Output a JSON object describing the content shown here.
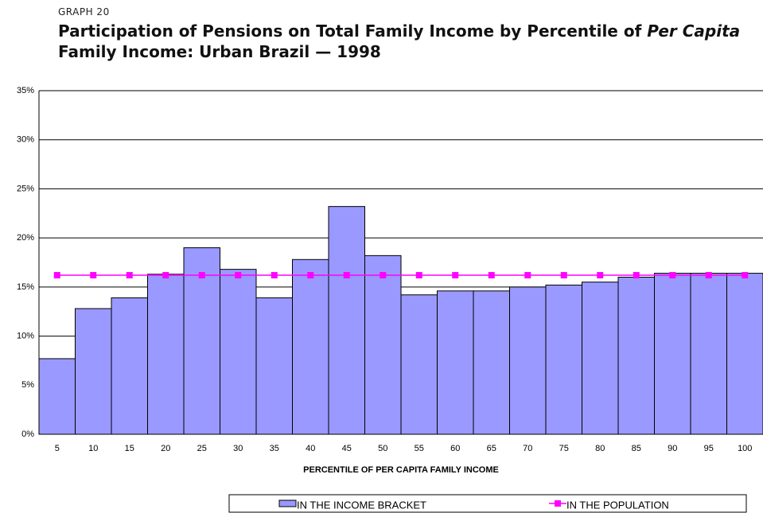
{
  "chart_data": {
    "type": "bar",
    "kicker": "GRAPH 20",
    "title": [
      "Participation of Pensions on Total Family Income by Percentile of ",
      "Per Capita",
      "Family Income: Urban Brazil — 1998"
    ],
    "x_label": "PERCENTILE OF PER CAPITA FAMILY INCOME",
    "categories": [
      "5",
      "10",
      "15",
      "20",
      "25",
      "30",
      "35",
      "40",
      "45",
      "50",
      "55",
      "60",
      "65",
      "70",
      "75",
      "80",
      "85",
      "90",
      "95",
      "100"
    ],
    "series": [
      {
        "name": "IN THE INCOME BRACKET",
        "type": "bar",
        "color": "#9999ff",
        "values": [
          7.7,
          12.8,
          13.9,
          16.3,
          19.0,
          16.8,
          13.9,
          17.8,
          23.2,
          18.2,
          14.2,
          14.6,
          14.6,
          15.0,
          15.2,
          15.5,
          16.0,
          16.4,
          16.4,
          16.4
        ]
      },
      {
        "name": "IN THE POPULATION",
        "type": "line",
        "color": "#ff00ff",
        "values": [
          16.2,
          16.2,
          16.2,
          16.2,
          16.2,
          16.2,
          16.2,
          16.2,
          16.2,
          16.2,
          16.2,
          16.2,
          16.2,
          16.2,
          16.2,
          16.2,
          16.2,
          16.2,
          16.2,
          16.2
        ]
      }
    ],
    "ylim": [
      0,
      35
    ],
    "yticks": [
      {
        "value": 0,
        "label": "0%"
      },
      {
        "value": 5,
        "label": "5%"
      },
      {
        "value": 10,
        "label": "10%"
      },
      {
        "value": 15,
        "label": "15%"
      },
      {
        "value": 20,
        "label": "20%"
      },
      {
        "value": 25,
        "label": "25%"
      },
      {
        "value": 30,
        "label": "30%"
      },
      {
        "value": 35,
        "label": "35%"
      }
    ],
    "grid": true,
    "legend": "bottom"
  }
}
